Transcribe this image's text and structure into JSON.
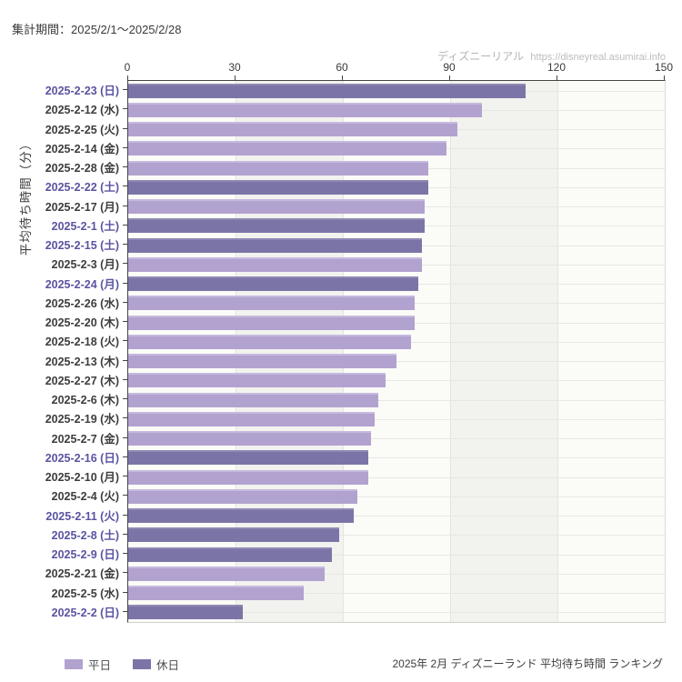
{
  "header": {
    "title": "集計期間：2025/2/1～2025/2/28"
  },
  "watermark": {
    "site_name": "ディズニーリアル",
    "url": "https://disneyreal.asumirai.info"
  },
  "legend": {
    "weekday_label": "平日",
    "holiday_label": "休日"
  },
  "footer": {
    "caption": "2025年 2月 ディズニーランド 平均待ち時間 ランキング"
  },
  "colors": {
    "weekday_bar": "#b2a2cf",
    "weekday_bar_highlight": "#c6bade",
    "holiday_bar": "#7b75a7",
    "holiday_bar_highlight": "#8f89b4",
    "weekday_label_text": "#3d3d3d",
    "holiday_label_text": "#5a54a1",
    "band_white": "#fbfcf8",
    "band_gray": "#f2f2ef"
  },
  "chart_data": {
    "type": "bar",
    "orientation": "horizontal",
    "title": "集計期間：2025/2/1～2025/2/28",
    "xlabel": "",
    "ylabel": "平均待ち時間（分）",
    "xlim": [
      0,
      150
    ],
    "x_ticks": [
      0,
      30,
      60,
      90,
      120,
      150
    ],
    "grid": "on",
    "legend_position": "bottom-left",
    "legend_entries": [
      "平日",
      "休日"
    ],
    "unit": "分",
    "bars": [
      {
        "label": "2025-2-23 (日)",
        "value": 111,
        "day_type": "holiday"
      },
      {
        "label": "2025-2-12 (水)",
        "value": 99,
        "day_type": "weekday"
      },
      {
        "label": "2025-2-25 (火)",
        "value": 92,
        "day_type": "weekday"
      },
      {
        "label": "2025-2-14 (金)",
        "value": 89,
        "day_type": "weekday"
      },
      {
        "label": "2025-2-28 (金)",
        "value": 84,
        "day_type": "weekday"
      },
      {
        "label": "2025-2-22 (土)",
        "value": 84,
        "day_type": "holiday"
      },
      {
        "label": "2025-2-17 (月)",
        "value": 83,
        "day_type": "weekday"
      },
      {
        "label": "2025-2-1 (土)",
        "value": 83,
        "day_type": "holiday"
      },
      {
        "label": "2025-2-15 (土)",
        "value": 82,
        "day_type": "holiday"
      },
      {
        "label": "2025-2-3 (月)",
        "value": 82,
        "day_type": "weekday"
      },
      {
        "label": "2025-2-24 (月)",
        "value": 81,
        "day_type": "holiday"
      },
      {
        "label": "2025-2-26 (水)",
        "value": 80,
        "day_type": "weekday"
      },
      {
        "label": "2025-2-20 (木)",
        "value": 80,
        "day_type": "weekday"
      },
      {
        "label": "2025-2-18 (火)",
        "value": 79,
        "day_type": "weekday"
      },
      {
        "label": "2025-2-13 (木)",
        "value": 75,
        "day_type": "weekday"
      },
      {
        "label": "2025-2-27 (木)",
        "value": 72,
        "day_type": "weekday"
      },
      {
        "label": "2025-2-6 (木)",
        "value": 70,
        "day_type": "weekday"
      },
      {
        "label": "2025-2-19 (水)",
        "value": 69,
        "day_type": "weekday"
      },
      {
        "label": "2025-2-7 (金)",
        "value": 68,
        "day_type": "weekday"
      },
      {
        "label": "2025-2-16 (日)",
        "value": 67,
        "day_type": "holiday"
      },
      {
        "label": "2025-2-10 (月)",
        "value": 67,
        "day_type": "weekday"
      },
      {
        "label": "2025-2-4 (火)",
        "value": 64,
        "day_type": "weekday"
      },
      {
        "label": "2025-2-11 (火)",
        "value": 63,
        "day_type": "holiday"
      },
      {
        "label": "2025-2-8 (土)",
        "value": 59,
        "day_type": "holiday"
      },
      {
        "label": "2025-2-9 (日)",
        "value": 57,
        "day_type": "holiday"
      },
      {
        "label": "2025-2-21 (金)",
        "value": 55,
        "day_type": "weekday"
      },
      {
        "label": "2025-2-5 (水)",
        "value": 49,
        "day_type": "weekday"
      },
      {
        "label": "2025-2-2 (日)",
        "value": 32,
        "day_type": "holiday"
      }
    ]
  }
}
